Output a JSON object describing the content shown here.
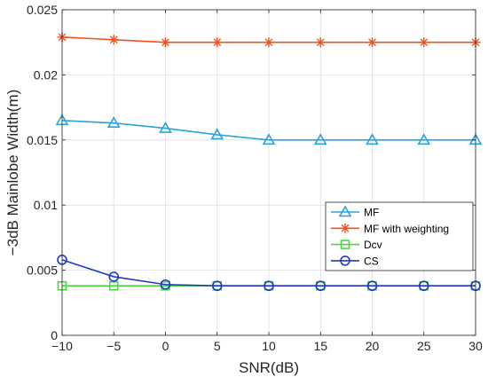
{
  "chart_data": {
    "type": "line",
    "title": "",
    "xlabel": "SNR(dB)",
    "ylabel": "−3dB Mainlobe Width(m)",
    "x": [
      -10,
      -5,
      0,
      5,
      10,
      15,
      20,
      25,
      30
    ],
    "xlim": [
      -10,
      30
    ],
    "ylim": [
      0,
      0.025
    ],
    "xticks": [
      -10,
      -5,
      0,
      5,
      10,
      15,
      20,
      25,
      30
    ],
    "xtick_labels": [
      "−10",
      "−5",
      "0",
      "5",
      "10",
      "15",
      "20",
      "25",
      "30"
    ],
    "yticks": [
      0,
      0.005,
      0.01,
      0.015,
      0.02,
      0.025
    ],
    "ytick_labels": [
      "0",
      "0.005",
      "0.01",
      "0.015",
      "0.02",
      "0.025"
    ],
    "grid": true,
    "legend_position": "right",
    "series": [
      {
        "name": "MF",
        "color": "#2aa4dc",
        "marker": "triangle",
        "values": [
          0.0165,
          0.0163,
          0.0159,
          0.0154,
          0.015,
          0.015,
          0.015,
          0.015,
          0.015
        ]
      },
      {
        "name": "MF with weighting",
        "color": "#f4511e",
        "marker": "star",
        "values": [
          0.0229,
          0.0227,
          0.0225,
          0.0225,
          0.0225,
          0.0225,
          0.0225,
          0.0225,
          0.0225
        ]
      },
      {
        "name": "Dcv",
        "color": "#4cd640",
        "marker": "square",
        "values": [
          0.0038,
          0.0038,
          0.0038,
          0.0038,
          0.0038,
          0.0038,
          0.0038,
          0.0038,
          0.0038
        ]
      },
      {
        "name": "CS",
        "color": "#1f3cbf",
        "marker": "circle",
        "values": [
          0.0058,
          0.0045,
          0.0039,
          0.0038,
          0.0038,
          0.0038,
          0.0038,
          0.0038,
          0.0038
        ]
      }
    ]
  }
}
